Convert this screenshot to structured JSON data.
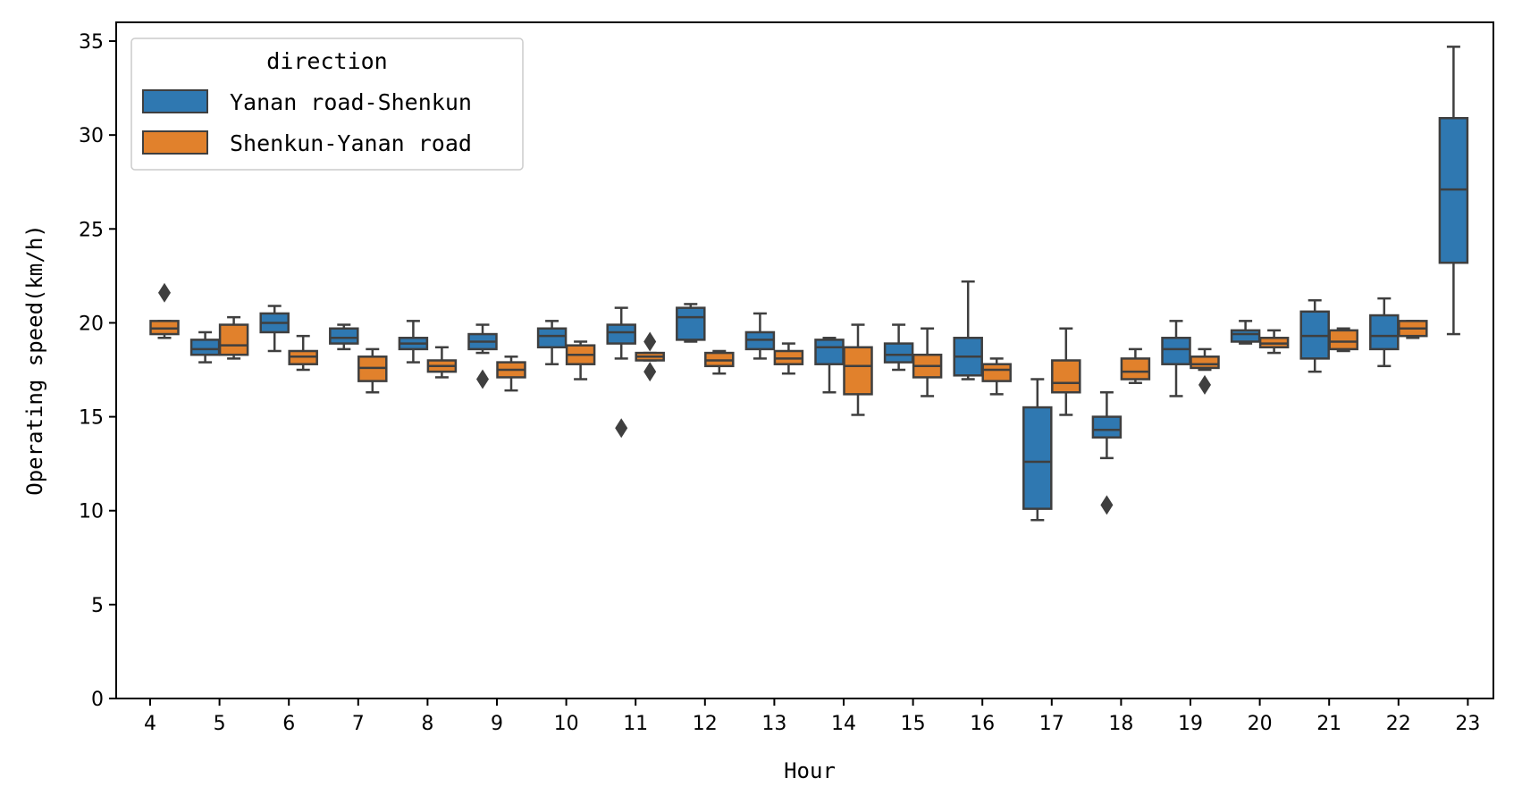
{
  "chart_data": {
    "type": "box",
    "xlabel": "Hour",
    "ylabel": "Operating speed(km/h)",
    "ylim": [
      0,
      36
    ],
    "yticks": [
      0,
      5,
      10,
      15,
      20,
      25,
      30,
      35
    ],
    "grid": false,
    "legend": {
      "title": "direction",
      "placement": "top-left"
    },
    "categories": [
      "4",
      "5",
      "6",
      "7",
      "8",
      "9",
      "10",
      "11",
      "12",
      "13",
      "14",
      "15",
      "16",
      "17",
      "18",
      "19",
      "20",
      "21",
      "22",
      "23"
    ],
    "series": [
      {
        "name": "Yanan road-Shenkun",
        "color": "#2f78b1",
        "boxes": [
          null,
          {
            "wlo": 17.9,
            "q1": 18.3,
            "med": 18.6,
            "q3": 19.1,
            "whi": 19.5,
            "outliers": []
          },
          {
            "wlo": 18.5,
            "q1": 19.5,
            "med": 20.0,
            "q3": 20.5,
            "whi": 20.9,
            "outliers": []
          },
          {
            "wlo": 18.6,
            "q1": 18.9,
            "med": 19.2,
            "q3": 19.7,
            "whi": 19.9,
            "outliers": []
          },
          {
            "wlo": 17.9,
            "q1": 18.6,
            "med": 18.9,
            "q3": 19.2,
            "whi": 20.1,
            "outliers": []
          },
          {
            "wlo": 18.4,
            "q1": 18.6,
            "med": 19.0,
            "q3": 19.4,
            "whi": 19.9,
            "outliers": [
              17.0
            ]
          },
          {
            "wlo": 17.8,
            "q1": 18.7,
            "med": 19.3,
            "q3": 19.7,
            "whi": 20.1,
            "outliers": []
          },
          {
            "wlo": 18.1,
            "q1": 18.9,
            "med": 19.5,
            "q3": 19.9,
            "whi": 20.8,
            "outliers": [
              14.4
            ]
          },
          {
            "wlo": 19.0,
            "q1": 19.1,
            "med": 20.3,
            "q3": 20.8,
            "whi": 21.0,
            "outliers": []
          },
          {
            "wlo": 18.1,
            "q1": 18.6,
            "med": 19.1,
            "q3": 19.5,
            "whi": 20.5,
            "outliers": []
          },
          {
            "wlo": 16.3,
            "q1": 17.8,
            "med": 18.7,
            "q3": 19.1,
            "whi": 19.2,
            "outliers": []
          },
          {
            "wlo": 17.5,
            "q1": 17.9,
            "med": 18.3,
            "q3": 18.9,
            "whi": 19.9,
            "outliers": []
          },
          {
            "wlo": 17.0,
            "q1": 17.2,
            "med": 18.2,
            "q3": 19.2,
            "whi": 22.2,
            "outliers": []
          },
          {
            "wlo": 9.5,
            "q1": 10.1,
            "med": 12.6,
            "q3": 15.5,
            "whi": 17.0,
            "outliers": []
          },
          {
            "wlo": 12.8,
            "q1": 13.9,
            "med": 14.3,
            "q3": 15.0,
            "whi": 16.3,
            "outliers": [
              10.3
            ]
          },
          {
            "wlo": 16.1,
            "q1": 17.8,
            "med": 18.6,
            "q3": 19.2,
            "whi": 20.1,
            "outliers": []
          },
          {
            "wlo": 18.9,
            "q1": 19.0,
            "med": 19.4,
            "q3": 19.6,
            "whi": 20.1,
            "outliers": []
          },
          {
            "wlo": 17.4,
            "q1": 18.1,
            "med": 19.3,
            "q3": 20.6,
            "whi": 21.2,
            "outliers": []
          },
          {
            "wlo": 17.7,
            "q1": 18.6,
            "med": 19.3,
            "q3": 20.4,
            "whi": 21.3,
            "outliers": []
          },
          {
            "wlo": 19.4,
            "q1": 23.2,
            "med": 27.1,
            "q3": 30.9,
            "whi": 34.7,
            "outliers": []
          }
        ]
      },
      {
        "name": "Shenkun-Yanan road",
        "color": "#e1812c",
        "boxes": [
          {
            "wlo": 19.2,
            "q1": 19.4,
            "med": 19.7,
            "q3": 20.1,
            "whi": 20.1,
            "outliers": [
              21.6
            ]
          },
          {
            "wlo": 18.1,
            "q1": 18.3,
            "med": 18.8,
            "q3": 19.9,
            "whi": 20.3,
            "outliers": []
          },
          {
            "wlo": 17.5,
            "q1": 17.8,
            "med": 18.2,
            "q3": 18.5,
            "whi": 19.3,
            "outliers": []
          },
          {
            "wlo": 16.3,
            "q1": 16.9,
            "med": 17.6,
            "q3": 18.2,
            "whi": 18.6,
            "outliers": []
          },
          {
            "wlo": 17.1,
            "q1": 17.4,
            "med": 17.7,
            "q3": 18.0,
            "whi": 18.7,
            "outliers": []
          },
          {
            "wlo": 16.4,
            "q1": 17.1,
            "med": 17.5,
            "q3": 17.9,
            "whi": 18.2,
            "outliers": []
          },
          {
            "wlo": 17.0,
            "q1": 17.8,
            "med": 18.3,
            "q3": 18.8,
            "whi": 19.0,
            "outliers": []
          },
          {
            "wlo": 18.0,
            "q1": 18.0,
            "med": 18.2,
            "q3": 18.4,
            "whi": 18.4,
            "outliers": [
              17.4,
              19.0
            ]
          },
          {
            "wlo": 17.3,
            "q1": 17.7,
            "med": 18.0,
            "q3": 18.4,
            "whi": 18.5,
            "outliers": []
          },
          {
            "wlo": 17.3,
            "q1": 17.8,
            "med": 18.1,
            "q3": 18.5,
            "whi": 18.9,
            "outliers": []
          },
          {
            "wlo": 15.1,
            "q1": 16.2,
            "med": 17.7,
            "q3": 18.7,
            "whi": 19.9,
            "outliers": []
          },
          {
            "wlo": 16.1,
            "q1": 17.1,
            "med": 17.7,
            "q3": 18.3,
            "whi": 19.7,
            "outliers": []
          },
          {
            "wlo": 16.2,
            "q1": 16.9,
            "med": 17.5,
            "q3": 17.8,
            "whi": 18.1,
            "outliers": []
          },
          {
            "wlo": 15.1,
            "q1": 16.3,
            "med": 16.8,
            "q3": 18.0,
            "whi": 19.7,
            "outliers": []
          },
          {
            "wlo": 16.8,
            "q1": 17.0,
            "med": 17.4,
            "q3": 18.1,
            "whi": 18.6,
            "outliers": []
          },
          {
            "wlo": 17.5,
            "q1": 17.6,
            "med": 17.8,
            "q3": 18.2,
            "whi": 18.6,
            "outliers": [
              16.7
            ]
          },
          {
            "wlo": 18.4,
            "q1": 18.7,
            "med": 18.9,
            "q3": 19.2,
            "whi": 19.6,
            "outliers": []
          },
          {
            "wlo": 18.5,
            "q1": 18.6,
            "med": 19.0,
            "q3": 19.6,
            "whi": 19.7,
            "outliers": []
          },
          {
            "wlo": 19.2,
            "q1": 19.3,
            "med": 19.7,
            "q3": 20.1,
            "whi": 20.1,
            "outliers": []
          },
          null
        ]
      }
    ]
  }
}
